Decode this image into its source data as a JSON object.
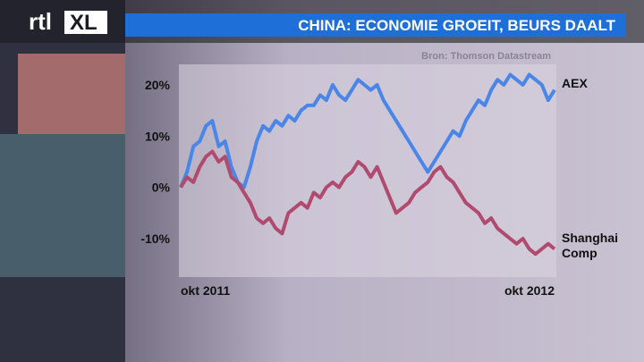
{
  "logo": {
    "left": "rtl",
    "right": "XL"
  },
  "chart_data": {
    "type": "line",
    "title": "CHINA: ECONOMIE GROEIT, BEURS DAALT",
    "source": "Bron: Thomson Datastream",
    "categories": [
      "okt 2011",
      null,
      null,
      null,
      null,
      null,
      null,
      null,
      null,
      null,
      null,
      null,
      null,
      null,
      null,
      null,
      null,
      null,
      null,
      null,
      null,
      null,
      null,
      null,
      null,
      null,
      null,
      null,
      null,
      null,
      null,
      null,
      null,
      null,
      null,
      null,
      null,
      null,
      null,
      null,
      null,
      null,
      null,
      null,
      null,
      null,
      null,
      null,
      null,
      null,
      null,
      null,
      null,
      null,
      null,
      null,
      null,
      null,
      null,
      "okt 2012"
    ],
    "series": [
      {
        "name": "AEX",
        "color": "#4a86e8",
        "values": [
          0,
          3,
          8,
          9,
          12,
          13,
          8,
          9,
          4,
          1,
          0,
          4,
          9,
          12,
          11,
          13,
          12,
          14,
          13,
          15,
          16,
          16,
          18,
          17,
          20,
          18,
          17,
          19,
          21,
          20,
          19,
          20,
          17,
          15,
          13,
          11,
          9,
          7,
          5,
          3,
          5,
          7,
          9,
          11,
          10,
          13,
          15,
          17,
          16,
          19,
          21,
          20,
          22,
          21,
          20,
          22,
          21,
          20,
          17,
          19
        ]
      },
      {
        "name": "Shanghai Comp",
        "color": "#b04a6e",
        "values": [
          0,
          2,
          1,
          4,
          6,
          7,
          5,
          6,
          2,
          1,
          -1,
          -3,
          -6,
          -7,
          -6,
          -8,
          -9,
          -5,
          -4,
          -3,
          -4,
          -1,
          -2,
          0,
          1,
          0,
          2,
          3,
          5,
          4,
          2,
          4,
          1,
          -2,
          -5,
          -4,
          -3,
          -1,
          0,
          1,
          3,
          4,
          2,
          1,
          -1,
          -3,
          -4,
          -5,
          -7,
          -6,
          -8,
          -9,
          -10,
          -11,
          -10,
          -12,
          -13,
          -12,
          -11,
          -12
        ]
      }
    ],
    "ylim": [
      -17.5,
      24
    ],
    "yticks": [
      {
        "value": -10,
        "label": "-10%"
      },
      {
        "value": 0,
        "label": "0%"
      },
      {
        "value": 10,
        "label": "10%"
      },
      {
        "value": 20,
        "label": "20%"
      }
    ]
  }
}
